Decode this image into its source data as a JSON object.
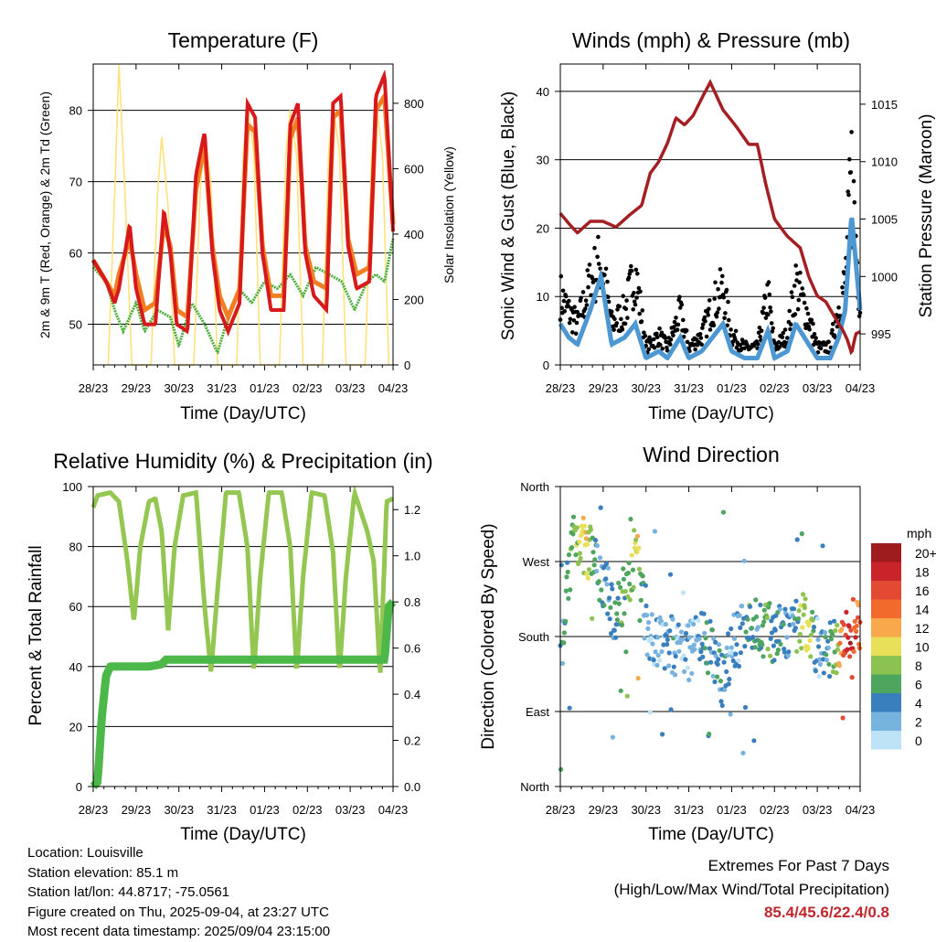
{
  "x_ticks": [
    "28/23",
    "29/23",
    "30/23",
    "31/23",
    "01/23",
    "02/23",
    "03/23",
    "04/23"
  ],
  "x_axis_label": "Time (Day/UTC)",
  "colors": {
    "temp_2m": "#d7191c",
    "temp_9m": "#f07f24",
    "dewpoint": "#4cae3a",
    "solar": "#ffe27a",
    "wind": "#4d98d2",
    "gust": "#000000",
    "pressure": "#a31f22",
    "rh": "#94c652",
    "precip": "#4cb849"
  },
  "panels": {
    "temperature": {
      "title": "Temperature (F)",
      "ylabel_left": "2m & 9m T (Red, Orange) & 2m Td (Green)",
      "ylabel_right": "Solar Insolation (Yellow)"
    },
    "winds": {
      "title": "Winds (mph) & Pressure (mb)",
      "ylabel_left": "Sonic Wind & Gust (Blue, Black)",
      "ylabel_right": "Station Pressure (Maroon)"
    },
    "humidity": {
      "title": "Relative Humidity (%) & Precipitation (in)",
      "ylabel_left": "Percent & Total Rainfall"
    },
    "direction": {
      "title": "Wind Direction",
      "ylabel_left": "Direction (Colored By Speed)",
      "legend_title": "mph",
      "legend_labels": [
        "20+",
        "18",
        "16",
        "14",
        "12",
        "10",
        "8",
        "6",
        "4",
        "2",
        "0"
      ],
      "legend_colors": [
        "#9e1b1e",
        "#c8242a",
        "#e34a33",
        "#f26b2c",
        "#f9a94b",
        "#e9e05a",
        "#8cc250",
        "#4ea55e",
        "#3a7fbd",
        "#78b3e0",
        "#bfe3f6"
      ]
    }
  },
  "info": {
    "location": "Location: Louisville",
    "elevation": "Station elevation: 85.1 m",
    "latlon": "Station lat/lon: 44.8717; -75.0561",
    "created": "Figure created on Thu, 2025-09-04, at 23:27 UTC",
    "recent": "Most recent data timestamp: 2025/09/04 23:15:00"
  },
  "extremes": {
    "line1": "Extremes For Past 7 Days",
    "line2": "(High/Low/Max Wind/Total Precipitation)",
    "values": "85.4/45.6/22.4/0.8"
  },
  "chart_data": [
    {
      "type": "line",
      "title": "Temperature (F)",
      "xlabel": "Time (Day/UTC)",
      "ylabel": "2m & 9m T (Red, Orange) & 2m Td (Green)",
      "y2label": "Solar Insolation (Yellow)",
      "x_range": [
        0,
        7
      ],
      "ylim": [
        44.3,
        86.5
      ],
      "y_ticks": [
        50,
        60,
        70,
        80
      ],
      "y2lim": [
        0,
        920
      ],
      "y2_ticks": [
        0,
        200,
        400,
        600,
        800
      ],
      "series": [
        {
          "name": "2m T",
          "axis": "left",
          "x": [
            0,
            0.3,
            0.5,
            0.6,
            0.85,
            1.0,
            1.2,
            1.45,
            1.65,
            1.8,
            1.95,
            2.2,
            2.4,
            2.6,
            2.78,
            2.95,
            3.15,
            3.42,
            3.6,
            3.78,
            3.95,
            4.15,
            4.45,
            4.6,
            4.78,
            4.95,
            5.15,
            5.45,
            5.6,
            5.78,
            5.95,
            6.15,
            6.45,
            6.6,
            6.8,
            7.0
          ],
          "values": [
            59,
            56,
            53,
            55,
            64,
            55,
            50,
            50,
            66,
            60,
            50,
            49,
            71,
            77,
            60,
            52,
            49,
            53,
            81,
            79,
            60,
            52,
            52,
            78,
            81,
            60,
            54,
            52,
            81,
            82,
            61,
            55,
            56,
            82,
            85,
            63
          ]
        },
        {
          "name": "9m T",
          "axis": "left",
          "x": [
            0,
            0.3,
            0.5,
            0.6,
            0.85,
            1.0,
            1.2,
            1.45,
            1.65,
            1.8,
            1.95,
            2.2,
            2.4,
            2.6,
            2.78,
            2.95,
            3.15,
            3.42,
            3.6,
            3.78,
            3.95,
            4.15,
            4.45,
            4.6,
            4.78,
            4.95,
            5.15,
            5.45,
            5.6,
            5.78,
            5.95,
            6.15,
            6.45,
            6.6,
            6.8,
            7.0
          ],
          "values": [
            59,
            56,
            54,
            57,
            62,
            57,
            52,
            53,
            64,
            61,
            52,
            51,
            69,
            75,
            61,
            54,
            51,
            55,
            78,
            77,
            61,
            54,
            54,
            76,
            79,
            61,
            56,
            55,
            79,
            80,
            62,
            57,
            58,
            80,
            82,
            64
          ]
        },
        {
          "name": "2m Td",
          "axis": "left",
          "x": [
            0,
            0.3,
            0.5,
            0.7,
            1.0,
            1.2,
            1.5,
            1.8,
            2.0,
            2.3,
            2.6,
            2.9,
            3.1,
            3.4,
            3.7,
            4.0,
            4.3,
            4.6,
            4.9,
            5.2,
            5.5,
            5.8,
            6.1,
            6.4,
            6.6,
            6.8,
            7.0
          ],
          "values": [
            58,
            56,
            52,
            49,
            53,
            49,
            52,
            51,
            47,
            53,
            50,
            46,
            50,
            55,
            53,
            56,
            55,
            57,
            54,
            58,
            57,
            56,
            52,
            56,
            57,
            56,
            62
          ]
        },
        {
          "name": "Solar Insolation",
          "axis": "right",
          "x": [
            0.35,
            0.5,
            0.6,
            0.75,
            0.9,
            1.35,
            1.5,
            1.6,
            1.75,
            1.9,
            2.35,
            2.5,
            2.6,
            2.75,
            2.9,
            3.35,
            3.5,
            3.6,
            3.75,
            3.9,
            4.35,
            4.5,
            4.6,
            4.75,
            4.9,
            5.35,
            5.5,
            5.6,
            5.75,
            5.9,
            6.35,
            6.5,
            6.6,
            6.75,
            6.9
          ],
          "values": [
            0,
            520,
            920,
            500,
            0,
            0,
            520,
            700,
            480,
            0,
            0,
            540,
            700,
            560,
            0,
            0,
            640,
            800,
            650,
            0,
            0,
            650,
            780,
            640,
            0,
            0,
            660,
            790,
            650,
            0,
            0,
            640,
            800,
            650,
            0
          ]
        }
      ]
    },
    {
      "type": "line",
      "title": "Winds (mph) & Pressure (mb)",
      "xlabel": "Time (Day/UTC)",
      "ylabel": "Sonic Wind & Gust (Blue, Black)",
      "y2label": "Station Pressure (Maroon)",
      "x_range": [
        0,
        7
      ],
      "ylim": [
        0,
        44
      ],
      "y_ticks": [
        0,
        10,
        20,
        30,
        40
      ],
      "y2lim": [
        992.3,
        1018.5
      ],
      "y2_ticks": [
        995,
        1000,
        1005,
        1010,
        1015
      ],
      "series": [
        {
          "name": "Sonic Wind",
          "axis": "left",
          "x": [
            0,
            0.2,
            0.4,
            0.7,
            0.95,
            1.2,
            1.5,
            1.75,
            2.0,
            2.3,
            2.5,
            2.8,
            3.0,
            3.3,
            3.55,
            3.8,
            4.0,
            4.3,
            4.6,
            4.85,
            5.0,
            5.3,
            5.5,
            5.8,
            6.0,
            6.3,
            6.5,
            6.65,
            6.8,
            7.0
          ],
          "values": [
            6,
            4,
            3,
            8,
            13,
            3,
            4,
            6,
            1,
            2,
            1,
            4,
            1,
            2,
            4,
            6,
            2,
            1,
            1,
            5,
            1,
            2,
            6,
            3,
            1,
            1,
            4,
            8,
            22,
            8
          ]
        },
        {
          "name": "Gust",
          "axis": "left",
          "x": [
            0,
            0.2,
            0.4,
            0.7,
            0.95,
            1.2,
            1.5,
            1.75,
            2.0,
            2.3,
            2.5,
            2.8,
            3.0,
            3.3,
            3.55,
            3.8,
            4.0,
            4.3,
            4.6,
            4.85,
            5.0,
            5.3,
            5.5,
            5.8,
            6.0,
            6.3,
            6.5,
            6.65,
            6.8,
            7.0
          ],
          "values": [
            12,
            9,
            7,
            14,
            18,
            7,
            9,
            16,
            3,
            5,
            3,
            9,
            3,
            5,
            10,
            13,
            5,
            3,
            3,
            12,
            3,
            5,
            14,
            8,
            3,
            3,
            10,
            14,
            33,
            10
          ]
        },
        {
          "name": "Station Pressure",
          "axis": "right",
          "x": [
            0,
            0.2,
            0.4,
            0.7,
            1.0,
            1.3,
            1.6,
            1.9,
            2.1,
            2.3,
            2.5,
            2.7,
            2.9,
            3.1,
            3.3,
            3.5,
            3.8,
            4.1,
            4.4,
            4.6,
            4.8,
            5.0,
            5.3,
            5.6,
            5.8,
            6.0,
            6.2,
            6.4,
            6.6,
            6.7,
            6.8,
            6.9,
            7.0
          ],
          "values": [
            1005.5,
            1004.6,
            1003.8,
            1004.8,
            1004.8,
            1004.3,
            1005.3,
            1006.2,
            1009.0,
            1010.0,
            1011.6,
            1013.8,
            1013.2,
            1014.0,
            1015.5,
            1016.9,
            1014.5,
            1013.1,
            1011.5,
            1011.5,
            1008.0,
            1005.0,
            1003.5,
            1002.5,
            1000.0,
            998.3,
            997.8,
            996.5,
            995.3,
            994.5,
            993.3,
            995.0,
            995.2
          ]
        }
      ]
    },
    {
      "type": "line",
      "title": "Relative Humidity (%) & Precipitation (in)",
      "xlabel": "Time (Day/UTC)",
      "ylabel": "Percent & Total Rainfall",
      "x_range": [
        0,
        7
      ],
      "ylim": [
        0,
        100
      ],
      "y_ticks": [
        0,
        20,
        40,
        60,
        80,
        100
      ],
      "y2lim": [
        0,
        1.3
      ],
      "y2_ticks": [
        0.0,
        0.2,
        0.4,
        0.6,
        0.8,
        1.0,
        1.2
      ],
      "series": [
        {
          "name": "Relative Humidity",
          "axis": "left",
          "x": [
            0,
            0.1,
            0.4,
            0.6,
            0.8,
            0.95,
            1.1,
            1.3,
            1.45,
            1.6,
            1.75,
            1.9,
            2.1,
            2.4,
            2.6,
            2.75,
            2.9,
            3.1,
            3.4,
            3.6,
            3.75,
            3.9,
            4.1,
            4.4,
            4.6,
            4.75,
            4.9,
            5.1,
            5.4,
            5.6,
            5.75,
            5.9,
            6.1,
            6.4,
            6.55,
            6.7,
            6.85,
            7.0
          ],
          "values": [
            93,
            97,
            98,
            95,
            75,
            55,
            80,
            95,
            96,
            85,
            52,
            80,
            97,
            98,
            60,
            38,
            65,
            98,
            98,
            80,
            38,
            70,
            98,
            98,
            80,
            38,
            70,
            98,
            97,
            78,
            38,
            70,
            98,
            85,
            75,
            37,
            95,
            96
          ]
        },
        {
          "name": "Total Precipitation",
          "axis": "right",
          "x": [
            0,
            0.1,
            0.2,
            0.3,
            0.4,
            0.6,
            1.0,
            1.3,
            1.6,
            1.7,
            2.0,
            3.0,
            4.0,
            5.0,
            6.0,
            6.5,
            6.8,
            6.9,
            7.0
          ],
          "values": [
            0.0,
            0.02,
            0.3,
            0.48,
            0.52,
            0.52,
            0.52,
            0.52,
            0.53,
            0.55,
            0.55,
            0.55,
            0.55,
            0.55,
            0.55,
            0.55,
            0.55,
            0.78,
            0.8
          ]
        }
      ]
    },
    {
      "type": "scatter",
      "title": "Wind Direction",
      "xlabel": "Time (Day/UTC)",
      "ylabel": "Direction (Colored By Speed)",
      "x_range": [
        0,
        7
      ],
      "ylim": [
        0,
        360
      ],
      "y_ticks": [
        "North",
        "East",
        "South",
        "West",
        "North"
      ],
      "color_scale": {
        "title": "mph",
        "labels": [
          "20+",
          "18",
          "16",
          "14",
          "12",
          "10",
          "8",
          "6",
          "4",
          "2",
          "0"
        ]
      },
      "series": [
        {
          "name": "Wind Direction",
          "x": [
            0.05,
            0.3,
            0.4,
            0.6,
            0.75,
            0.9,
            1.1,
            1.3,
            1.45,
            1.7,
            1.8,
            2.0,
            2.2,
            2.4,
            2.6,
            2.8,
            3.0,
            3.2,
            3.4,
            3.6,
            3.8,
            4.0,
            4.2,
            4.4,
            4.6,
            4.8,
            5.0,
            5.2,
            5.4,
            5.6,
            5.8,
            6.0,
            6.2,
            6.4,
            6.6,
            6.8,
            6.95
          ],
          "values": [
            180,
            305,
            300,
            285,
            275,
            260,
            230,
            200,
            230,
            270,
            290,
            190,
            180,
            170,
            170,
            160,
            160,
            185,
            170,
            155,
            130,
            170,
            180,
            200,
            190,
            190,
            180,
            185,
            180,
            200,
            190,
            170,
            155,
            170,
            170,
            190,
            195
          ],
          "speed": [
            4,
            6,
            8,
            10,
            6,
            4,
            4,
            4,
            6,
            8,
            10,
            2,
            2,
            2,
            4,
            2,
            2,
            2,
            4,
            4,
            4,
            2,
            2,
            6,
            4,
            8,
            4,
            4,
            2,
            8,
            10,
            2,
            4,
            6,
            16,
            18,
            14
          ]
        }
      ]
    }
  ]
}
